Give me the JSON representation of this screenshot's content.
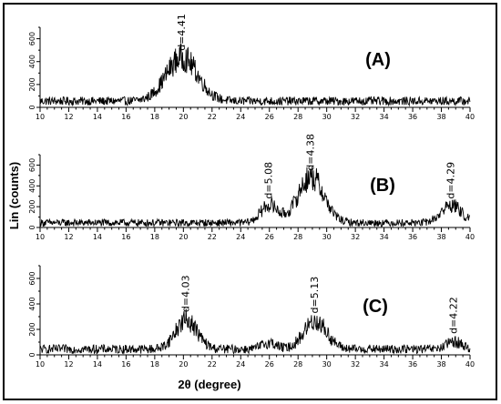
{
  "chart_data": [
    {
      "type": "line",
      "panel_label": "(A)",
      "x_ticks": [
        10,
        12,
        14,
        16,
        18,
        20,
        22,
        24,
        26,
        28,
        30,
        32,
        34,
        36,
        38,
        40
      ],
      "y_ticks": [
        0,
        200,
        400,
        600
      ],
      "xlim": [
        10,
        40
      ],
      "ylim": [
        0,
        700
      ],
      "baseline": 55,
      "peaks": [
        {
          "x": 19.9,
          "height": 380,
          "width": 1.1,
          "label": "d=4.41"
        }
      ]
    },
    {
      "type": "line",
      "panel_label": "(B)",
      "x_ticks": [
        10,
        12,
        14,
        16,
        18,
        20,
        22,
        24,
        26,
        28,
        30,
        32,
        34,
        36,
        38,
        40
      ],
      "y_ticks": [
        0,
        200,
        400,
        600
      ],
      "xlim": [
        10,
        40
      ],
      "ylim": [
        0,
        700
      ],
      "baseline": 45,
      "peaks": [
        {
          "x": 26.0,
          "height": 170,
          "width": 0.6,
          "label": "d=5.08"
        },
        {
          "x": 28.9,
          "height": 440,
          "width": 0.9,
          "label": "d=4.38"
        },
        {
          "x": 38.7,
          "height": 170,
          "width": 0.7,
          "label": "d=4.29"
        }
      ]
    },
    {
      "type": "line",
      "panel_label": "(C)",
      "x_ticks": [
        10,
        12,
        14,
        16,
        18,
        20,
        22,
        24,
        26,
        28,
        30,
        32,
        34,
        36,
        38,
        40
      ],
      "y_ticks": [
        0,
        200,
        400,
        600
      ],
      "xlim": [
        10,
        40
      ],
      "ylim": [
        0,
        700
      ],
      "baseline": 45,
      "peaks": [
        {
          "x": 20.2,
          "height": 230,
          "width": 0.75,
          "label": "d=4.03"
        },
        {
          "x": 26.0,
          "height": 50,
          "width": 0.5,
          "label": ""
        },
        {
          "x": 29.2,
          "height": 220,
          "width": 0.8,
          "label": "d=5.13"
        },
        {
          "x": 38.9,
          "height": 60,
          "width": 0.5,
          "label": "d=4.22"
        }
      ]
    }
  ],
  "ylabel": "Lin (counts)",
  "xlabel": "2θ (degree)"
}
